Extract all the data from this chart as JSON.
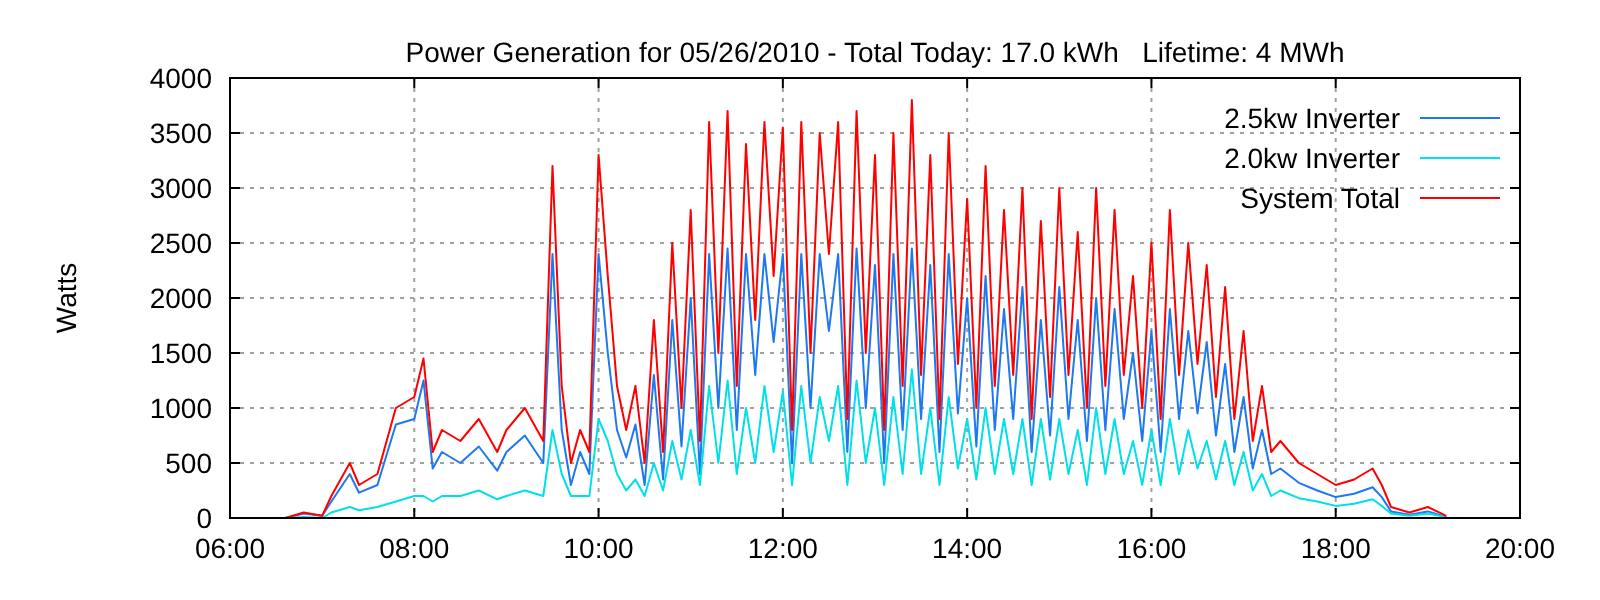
{
  "chart_data": {
    "type": "line",
    "title": "Power Generation for 05/26/2010 - Total Today: 17.0 kWh   Lifetime: 4 MWh",
    "ylabel": "Watts",
    "x": [
      6.6,
      6.8,
      7.0,
      7.1,
      7.3,
      7.4,
      7.6,
      7.8,
      8.0,
      8.1,
      8.2,
      8.3,
      8.5,
      8.7,
      8.9,
      9.0,
      9.2,
      9.4,
      9.5,
      9.6,
      9.7,
      9.8,
      9.9,
      10.0,
      10.1,
      10.2,
      10.3,
      10.4,
      10.5,
      10.6,
      10.7,
      10.8,
      10.9,
      11.0,
      11.1,
      11.2,
      11.3,
      11.4,
      11.5,
      11.6,
      11.7,
      11.8,
      11.9,
      12.0,
      12.1,
      12.2,
      12.3,
      12.4,
      12.5,
      12.6,
      12.7,
      12.8,
      12.9,
      13.0,
      13.1,
      13.2,
      13.3,
      13.4,
      13.5,
      13.6,
      13.7,
      13.8,
      13.9,
      14.0,
      14.1,
      14.2,
      14.3,
      14.4,
      14.5,
      14.6,
      14.7,
      14.8,
      14.9,
      15.0,
      15.1,
      15.2,
      15.3,
      15.4,
      15.5,
      15.6,
      15.7,
      15.8,
      15.9,
      16.0,
      16.1,
      16.2,
      16.3,
      16.4,
      16.5,
      16.6,
      16.7,
      16.8,
      16.9,
      17.0,
      17.1,
      17.2,
      17.3,
      17.4,
      17.6,
      17.8,
      18.0,
      18.2,
      18.4,
      18.5,
      18.6,
      18.8,
      19.0,
      19.2
    ],
    "series": [
      {
        "name": "2.5kw Inverter",
        "color": "#1e78f0",
        "values": [
          0,
          40,
          20,
          150,
          400,
          230,
          300,
          850,
          900,
          1250,
          450,
          600,
          500,
          650,
          430,
          600,
          750,
          500,
          2400,
          800,
          300,
          600,
          400,
          2400,
          1500,
          800,
          550,
          850,
          300,
          1300,
          350,
          1800,
          650,
          2000,
          400,
          2400,
          1000,
          2450,
          800,
          2400,
          1300,
          2400,
          1600,
          2400,
          500,
          2400,
          1000,
          2400,
          1700,
          2400,
          600,
          2450,
          1000,
          2300,
          500,
          2400,
          800,
          2450,
          900,
          2300,
          600,
          2400,
          950,
          2000,
          650,
          2200,
          800,
          1900,
          900,
          2100,
          600,
          1800,
          750,
          2100,
          900,
          1800,
          700,
          2000,
          800,
          1900,
          900,
          1500,
          700,
          1700,
          600,
          1900,
          900,
          1700,
          950,
          1600,
          750,
          1400,
          600,
          1100,
          450,
          800,
          400,
          450,
          320,
          250,
          190,
          220,
          280,
          190,
          60,
          30,
          60,
          10
        ]
      },
      {
        "name": "2.0kw Inverter",
        "color": "#00e0e8",
        "values": [
          0,
          10,
          0,
          50,
          100,
          70,
          100,
          150,
          200,
          200,
          150,
          200,
          200,
          250,
          170,
          200,
          250,
          200,
          800,
          400,
          200,
          200,
          200,
          900,
          700,
          400,
          250,
          350,
          200,
          500,
          250,
          700,
          350,
          800,
          300,
          1200,
          500,
          1250,
          400,
          1000,
          500,
          1200,
          600,
          1150,
          300,
          1200,
          500,
          1100,
          700,
          1200,
          300,
          1250,
          500,
          1000,
          300,
          1100,
          400,
          1350,
          400,
          1000,
          300,
          1100,
          450,
          900,
          350,
          1000,
          400,
          900,
          400,
          900,
          300,
          900,
          350,
          900,
          400,
          800,
          300,
          1000,
          400,
          900,
          400,
          700,
          300,
          800,
          300,
          900,
          400,
          800,
          450,
          700,
          350,
          700,
          300,
          600,
          250,
          400,
          200,
          250,
          180,
          150,
          110,
          130,
          170,
          110,
          40,
          20,
          40,
          10
        ]
      },
      {
        "name": "System Total",
        "color": "#ff0000",
        "values": [
          0,
          50,
          20,
          200,
          500,
          300,
          400,
          1000,
          1100,
          1450,
          600,
          800,
          700,
          900,
          600,
          800,
          1000,
          700,
          3200,
          1200,
          500,
          800,
          600,
          3300,
          2200,
          1200,
          800,
          1200,
          500,
          1800,
          600,
          2500,
          1000,
          2800,
          700,
          3600,
          1500,
          3700,
          1200,
          3400,
          1800,
          3600,
          2200,
          3550,
          800,
          3600,
          1500,
          3500,
          2400,
          3600,
          900,
          3700,
          1500,
          3300,
          800,
          3500,
          1200,
          3800,
          1300,
          3300,
          900,
          3500,
          1400,
          2900,
          1000,
          3200,
          1200,
          2800,
          1300,
          3000,
          900,
          2700,
          1100,
          3000,
          1300,
          2600,
          1000,
          3000,
          1200,
          2800,
          1300,
          2200,
          1000,
          2500,
          900,
          2800,
          1300,
          2500,
          1400,
          2300,
          1100,
          2100,
          900,
          1700,
          700,
          1200,
          600,
          700,
          500,
          400,
          300,
          350,
          450,
          300,
          100,
          50,
          100,
          20
        ]
      }
    ],
    "xlim": [
      6,
      20
    ],
    "xticks": [
      {
        "value": 6,
        "label": "06:00"
      },
      {
        "value": 8,
        "label": "08:00"
      },
      {
        "value": 10,
        "label": "10:00"
      },
      {
        "value": 12,
        "label": "12:00"
      },
      {
        "value": 14,
        "label": "14:00"
      },
      {
        "value": 16,
        "label": "16:00"
      },
      {
        "value": 18,
        "label": "18:00"
      },
      {
        "value": 20,
        "label": "20:00"
      }
    ],
    "ylim": [
      0,
      4000
    ],
    "yticks": [
      0,
      500,
      1000,
      1500,
      2000,
      2500,
      3000,
      3500,
      4000
    ],
    "grid": true,
    "legend": "top right",
    "marker": "none",
    "line_style": "solid"
  }
}
